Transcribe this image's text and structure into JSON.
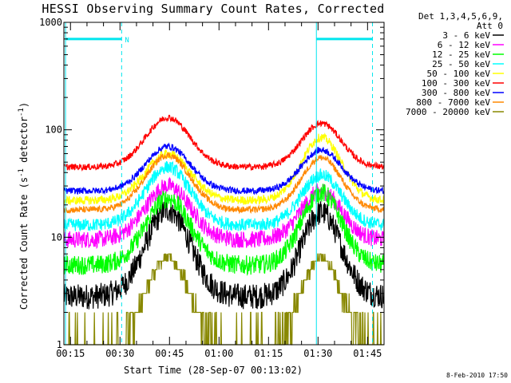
{
  "chart_data": {
    "type": "line",
    "title": "HESSI Observing Summary Count Rates, Corrected",
    "xlabel": "Start Time (28-Sep-07 00:13:02)",
    "ylabel_main": "Corrected Count Rate (s",
    "ylabel_sup1": "-1",
    "ylabel_mid": " detector",
    "ylabel_sup2": "-1",
    "ylabel_end": ")",
    "y_scale": "log",
    "ylim": [
      1,
      1000
    ],
    "xlim_minutes": [
      13,
      110
    ],
    "x_ticks": [
      {
        "t": 15,
        "label": "00:15"
      },
      {
        "t": 30,
        "label": "00:30"
      },
      {
        "t": 45,
        "label": "00:45"
      },
      {
        "t": 60,
        "label": "01:00"
      },
      {
        "t": 75,
        "label": "01:15"
      },
      {
        "t": 90,
        "label": "01:30"
      },
      {
        "t": 105,
        "label": "01:45"
      }
    ],
    "y_ticks": [
      {
        "v": 1,
        "label": "1"
      },
      {
        "v": 10,
        "label": "10"
      },
      {
        "v": 100,
        "label": "100"
      },
      {
        "v": 1000,
        "label": "1000"
      }
    ],
    "legend_header": [
      "Det 1,3,4,5,6,9,",
      "Att 0"
    ],
    "legend_placement": "right",
    "series": [
      {
        "name": "3 - 6 keV",
        "color": "#000000",
        "peak1": 18,
        "peak2": 17,
        "base": 2.8,
        "jitter": 0.12
      },
      {
        "name": "6 - 12 keV",
        "color": "#ff00ff",
        "peak1": 30,
        "peak2": 27,
        "base": 9.5,
        "jitter": 0.08
      },
      {
        "name": "12 - 25 keV",
        "color": "#00ff00",
        "peak1": 23,
        "peak2": 26,
        "base": 5.5,
        "jitter": 0.09
      },
      {
        "name": "25 - 50 keV",
        "color": "#00ffff",
        "peak1": 45,
        "peak2": 38,
        "base": 13,
        "jitter": 0.06
      },
      {
        "name": "50 - 100 keV",
        "color": "#ffff00",
        "peak1": 60,
        "peak2": 85,
        "base": 22,
        "jitter": 0.04
      },
      {
        "name": "100 - 300 keV",
        "color": "#ff0000",
        "peak1": 130,
        "peak2": 115,
        "base": 45,
        "jitter": 0.03
      },
      {
        "name": "300 - 800 keV",
        "color": "#0000ff",
        "peak1": 70,
        "peak2": 65,
        "base": 27,
        "jitter": 0.03
      },
      {
        "name": "800 - 7000 keV",
        "color": "#ff8800",
        "peak1": 58,
        "peak2": 55,
        "base": 18,
        "jitter": 0.03
      },
      {
        "name": "7000 - 20000 keV",
        "color": "#888800",
        "peak1": 6.5,
        "peak2": 6.5,
        "base": 1.0,
        "jitter": 0.0
      }
    ],
    "saa_intervals": [
      {
        "start": 13.5,
        "end": 30.5,
        "label": "N"
      },
      {
        "start": 89.5,
        "end": 106.5,
        "label": ""
      }
    ],
    "markers_color": "#00e5ee",
    "peak_times": [
      44.5,
      91
    ],
    "timestamp": "8-Feb-2010 17:50"
  }
}
